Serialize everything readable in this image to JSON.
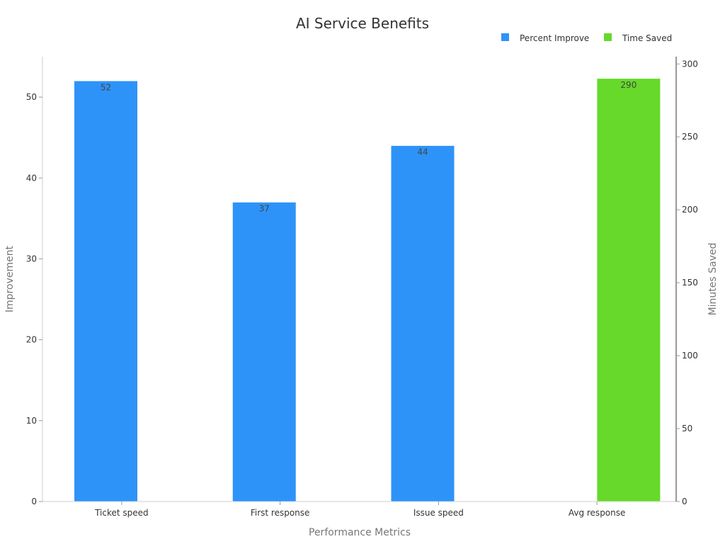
{
  "chart_data": {
    "type": "bar",
    "title": "AI Service Benefits",
    "xlabel": "Performance Metrics",
    "ylabel": "Improvement",
    "y2label": "Minutes Saved",
    "categories": [
      "Ticket speed",
      "First response",
      "Issue speed",
      "Avg response"
    ],
    "ylim": [
      0,
      55
    ],
    "y2lim": [
      0,
      305
    ],
    "yticks": [
      0,
      10,
      20,
      30,
      40,
      50
    ],
    "y2ticks": [
      0,
      50,
      100,
      150,
      200,
      250,
      300
    ],
    "legend_position": "top-right",
    "grid": false,
    "series": [
      {
        "name": "Percent Improve",
        "axis": "left",
        "color": "#2e93f8",
        "values": [
          52,
          37,
          44,
          null
        ],
        "labels": [
          "52",
          "37",
          "44",
          ""
        ]
      },
      {
        "name": "Time Saved",
        "axis": "right",
        "color": "#66d92a",
        "values": [
          null,
          null,
          null,
          290
        ],
        "labels": [
          "",
          "",
          "",
          "290"
        ]
      }
    ]
  }
}
